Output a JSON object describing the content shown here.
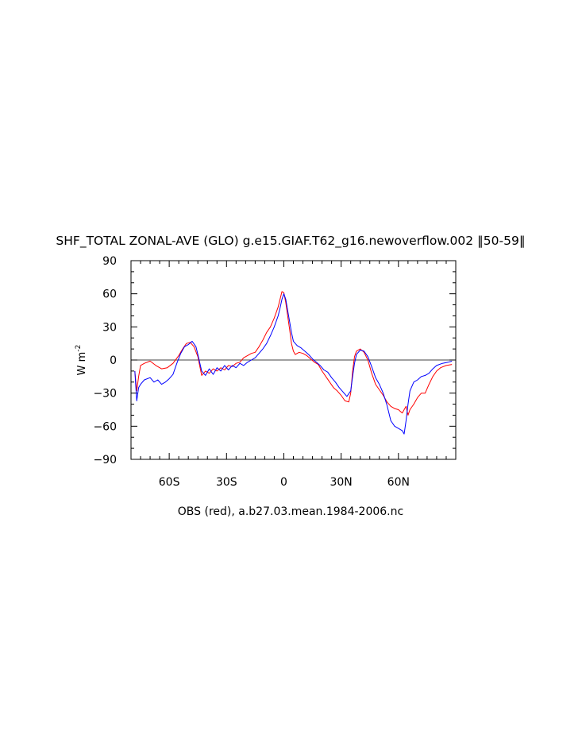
{
  "chart_data": {
    "type": "line",
    "title": "SHF_TOTAL ZONAL-AVE (GLO) g.e15.GIAF.T62_g16.newoverflow.002 ‖50-59‖",
    "ylabel": "W m",
    "ylabel_exponent": "-2",
    "xlabel": "OBS (red), a.b27.03.mean.1984-2006.nc",
    "xlim": [
      -80,
      90
    ],
    "ylim": [
      -90,
      90
    ],
    "xticks": [
      {
        "value": -60,
        "label": "60S"
      },
      {
        "value": -30,
        "label": "30S"
      },
      {
        "value": 0,
        "label": "0"
      },
      {
        "value": 30,
        "label": "30N"
      },
      {
        "value": 60,
        "label": "60N"
      }
    ],
    "yticks": [
      {
        "value": 90,
        "label": "90"
      },
      {
        "value": 60,
        "label": "60"
      },
      {
        "value": 30,
        "label": "30"
      },
      {
        "value": 0,
        "label": "0"
      },
      {
        "value": -30,
        "label": "−30"
      },
      {
        "value": -60,
        "label": "−60"
      },
      {
        "value": -90,
        "label": "−90"
      }
    ],
    "zero_line": true,
    "series": [
      {
        "color": "#ff0000",
        "points": [
          [
            -78,
            -10
          ],
          [
            -77,
            -28
          ],
          [
            -76,
            -15
          ],
          [
            -75,
            -5
          ],
          [
            -73,
            -3
          ],
          [
            -70,
            -1
          ],
          [
            -67,
            -5
          ],
          [
            -64,
            -8
          ],
          [
            -61,
            -7
          ],
          [
            -58,
            -3
          ],
          [
            -55,
            4
          ],
          [
            -53,
            10
          ],
          [
            -51,
            15
          ],
          [
            -49,
            16
          ],
          [
            -47,
            12
          ],
          [
            -45,
            3
          ],
          [
            -43,
            -14
          ],
          [
            -41,
            -10
          ],
          [
            -39,
            -12
          ],
          [
            -37,
            -8
          ],
          [
            -35,
            -10
          ],
          [
            -33,
            -7
          ],
          [
            -31,
            -9
          ],
          [
            -29,
            -5
          ],
          [
            -27,
            -6
          ],
          [
            -25,
            -3
          ],
          [
            -23,
            -2
          ],
          [
            -21,
            2
          ],
          [
            -19,
            4
          ],
          [
            -17,
            6
          ],
          [
            -15,
            7
          ],
          [
            -13,
            12
          ],
          [
            -11,
            18
          ],
          [
            -9,
            25
          ],
          [
            -7,
            30
          ],
          [
            -5,
            38
          ],
          [
            -3,
            48
          ],
          [
            -2,
            55
          ],
          [
            -1,
            62
          ],
          [
            0,
            61
          ],
          [
            1,
            52
          ],
          [
            2,
            40
          ],
          [
            3,
            28
          ],
          [
            4,
            15
          ],
          [
            5,
            8
          ],
          [
            6,
            5
          ],
          [
            8,
            7
          ],
          [
            10,
            6
          ],
          [
            12,
            4
          ],
          [
            14,
            1
          ],
          [
            16,
            -2
          ],
          [
            18,
            -4
          ],
          [
            20,
            -10
          ],
          [
            22,
            -15
          ],
          [
            24,
            -20
          ],
          [
            26,
            -25
          ],
          [
            28,
            -28
          ],
          [
            30,
            -32
          ],
          [
            32,
            -37
          ],
          [
            34,
            -38
          ],
          [
            35,
            -30
          ],
          [
            36,
            -10
          ],
          [
            37,
            3
          ],
          [
            38,
            8
          ],
          [
            40,
            10
          ],
          [
            42,
            7
          ],
          [
            44,
            0
          ],
          [
            46,
            -12
          ],
          [
            48,
            -22
          ],
          [
            50,
            -27
          ],
          [
            52,
            -32
          ],
          [
            54,
            -38
          ],
          [
            56,
            -42
          ],
          [
            58,
            -44
          ],
          [
            60,
            -45
          ],
          [
            62,
            -48
          ],
          [
            64,
            -42
          ],
          [
            65,
            -50
          ],
          [
            66,
            -45
          ],
          [
            68,
            -40
          ],
          [
            70,
            -34
          ],
          [
            72,
            -30
          ],
          [
            74,
            -30
          ],
          [
            76,
            -22
          ],
          [
            78,
            -15
          ],
          [
            80,
            -10
          ],
          [
            82,
            -7
          ],
          [
            85,
            -5
          ],
          [
            88,
            -4
          ]
        ]
      },
      {
        "color": "#0000ff",
        "points": [
          [
            -78,
            -10
          ],
          [
            -77,
            -37
          ],
          [
            -76,
            -25
          ],
          [
            -75,
            -22
          ],
          [
            -73,
            -18
          ],
          [
            -70,
            -16
          ],
          [
            -68,
            -20
          ],
          [
            -66,
            -18
          ],
          [
            -64,
            -22
          ],
          [
            -62,
            -20
          ],
          [
            -60,
            -17
          ],
          [
            -58,
            -13
          ],
          [
            -56,
            -3
          ],
          [
            -54,
            6
          ],
          [
            -52,
            12
          ],
          [
            -50,
            14
          ],
          [
            -48,
            17
          ],
          [
            -46,
            12
          ],
          [
            -45,
            5
          ],
          [
            -43,
            -10
          ],
          [
            -41,
            -14
          ],
          [
            -39,
            -8
          ],
          [
            -37,
            -13
          ],
          [
            -35,
            -7
          ],
          [
            -33,
            -10
          ],
          [
            -31,
            -5
          ],
          [
            -29,
            -9
          ],
          [
            -27,
            -5
          ],
          [
            -25,
            -7
          ],
          [
            -23,
            -3
          ],
          [
            -21,
            -5
          ],
          [
            -19,
            -2
          ],
          [
            -17,
            0
          ],
          [
            -15,
            2
          ],
          [
            -13,
            6
          ],
          [
            -11,
            10
          ],
          [
            -9,
            15
          ],
          [
            -7,
            22
          ],
          [
            -5,
            30
          ],
          [
            -3,
            40
          ],
          [
            -2,
            47
          ],
          [
            -1,
            55
          ],
          [
            0,
            60
          ],
          [
            1,
            55
          ],
          [
            2,
            45
          ],
          [
            3,
            35
          ],
          [
            4,
            25
          ],
          [
            5,
            17
          ],
          [
            7,
            13
          ],
          [
            9,
            11
          ],
          [
            11,
            8
          ],
          [
            13,
            5
          ],
          [
            15,
            1
          ],
          [
            17,
            -2
          ],
          [
            19,
            -5
          ],
          [
            21,
            -9
          ],
          [
            23,
            -11
          ],
          [
            25,
            -16
          ],
          [
            27,
            -20
          ],
          [
            29,
            -25
          ],
          [
            31,
            -29
          ],
          [
            33,
            -33
          ],
          [
            35,
            -28
          ],
          [
            36,
            -15
          ],
          [
            37,
            -3
          ],
          [
            38,
            5
          ],
          [
            40,
            9
          ],
          [
            42,
            8
          ],
          [
            44,
            3
          ],
          [
            46,
            -6
          ],
          [
            48,
            -16
          ],
          [
            50,
            -22
          ],
          [
            52,
            -30
          ],
          [
            54,
            -41
          ],
          [
            56,
            -55
          ],
          [
            58,
            -60
          ],
          [
            60,
            -62
          ],
          [
            62,
            -64
          ],
          [
            63,
            -67
          ],
          [
            64,
            -55
          ],
          [
            65,
            -40
          ],
          [
            66,
            -28
          ],
          [
            68,
            -20
          ],
          [
            70,
            -18
          ],
          [
            72,
            -15
          ],
          [
            74,
            -14
          ],
          [
            76,
            -12
          ],
          [
            78,
            -8
          ],
          [
            80,
            -5
          ],
          [
            83,
            -3
          ],
          [
            86,
            -2
          ],
          [
            88,
            -1
          ]
        ]
      }
    ]
  }
}
